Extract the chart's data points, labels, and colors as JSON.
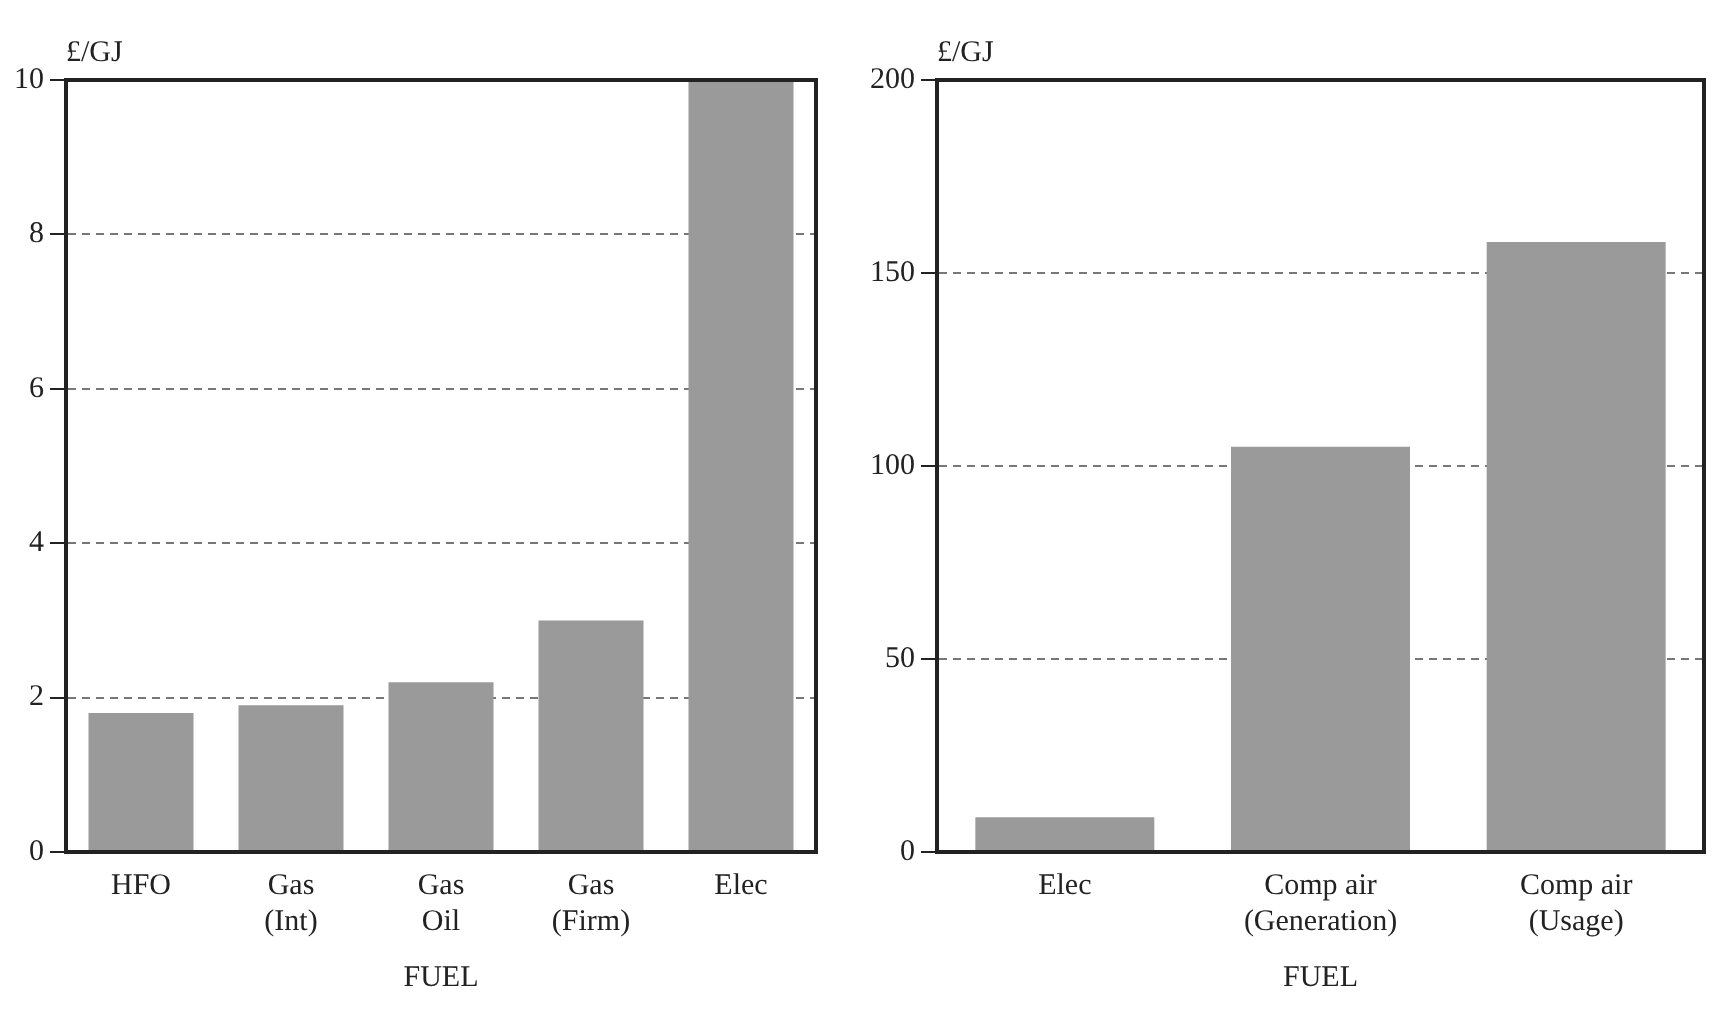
{
  "chart_data": [
    {
      "type": "bar",
      "xlabel": "FUEL",
      "ylabel": "£/GJ",
      "categories": [
        "HFO",
        "Gas\n(Int)",
        "Gas\nOil",
        "Gas\n(Firm)",
        "Elec"
      ],
      "values": [
        1.8,
        1.9,
        2.2,
        3.0,
        10
      ],
      "color": "#9a9a9a",
      "ylim": [
        0,
        10
      ],
      "yticks": [
        0,
        2,
        4,
        6,
        8,
        10
      ],
      "grid": "y",
      "legend": false
    },
    {
      "type": "bar",
      "xlabel": "FUEL",
      "ylabel": "£/GJ",
      "categories": [
        "Elec",
        "Comp air\n(Generation)",
        "Comp air\n(Usage)"
      ],
      "values": [
        9,
        105,
        158
      ],
      "color": "#9a9a9a",
      "ylim": [
        0,
        200
      ],
      "yticks": [
        0,
        50,
        100,
        150,
        200
      ],
      "grid": "y",
      "legend": false
    }
  ]
}
